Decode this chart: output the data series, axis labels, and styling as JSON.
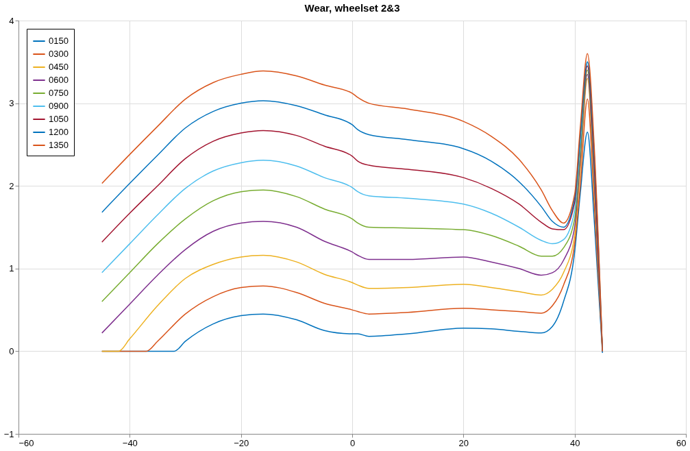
{
  "chart_data": {
    "type": "line",
    "title": "Wear, wheelset 2&3",
    "xlim": [
      -60,
      60
    ],
    "xticks": [
      -60,
      -40,
      -20,
      0,
      20,
      40,
      60
    ],
    "ylim": [
      -1,
      4
    ],
    "yticks": [
      -1,
      0,
      1,
      2,
      3,
      4
    ],
    "grid": true,
    "legend": "top left",
    "line_style": "solid",
    "marker": "none",
    "series": [
      {
        "name": "0150",
        "color": "#0072bd",
        "x": [
          -45,
          -32,
          -30,
          -25,
          -20,
          -16,
          -10,
          -5,
          0,
          1,
          3,
          10,
          20,
          25,
          30,
          34,
          36,
          38,
          40,
          41,
          42.3,
          43.5,
          45
        ],
        "values": [
          0,
          0,
          0.12,
          0.33,
          0.43,
          0.45,
          0.38,
          0.25,
          0.21,
          0.21,
          0.18,
          0.21,
          0.28,
          0.27,
          0.24,
          0.22,
          0.3,
          0.6,
          1.2,
          1.9,
          2.65,
          1.6,
          -0.02
        ]
      },
      {
        "name": "0300",
        "color": "#d95319",
        "x": [
          -45,
          -37,
          -35,
          -30,
          -25,
          -20,
          -16,
          -10,
          -5,
          0,
          1,
          3,
          10,
          20,
          25,
          30,
          34,
          36,
          38,
          40,
          41,
          42.3,
          43.5,
          45
        ],
        "values": [
          0,
          0,
          0.12,
          0.45,
          0.66,
          0.77,
          0.79,
          0.71,
          0.58,
          0.5,
          0.48,
          0.45,
          0.47,
          0.52,
          0.5,
          0.48,
          0.46,
          0.55,
          0.8,
          1.3,
          2.0,
          3.05,
          1.8,
          0
        ]
      },
      {
        "name": "0450",
        "color": "#edb120",
        "x": [
          -45,
          -42,
          -40,
          -35,
          -30,
          -25,
          -20,
          -16,
          -10,
          -5,
          0,
          1,
          3,
          10,
          20,
          25,
          30,
          34,
          36,
          38,
          40,
          41,
          42.3,
          43.5,
          45
        ],
        "values": [
          0,
          0,
          0.15,
          0.55,
          0.88,
          1.05,
          1.14,
          1.16,
          1.08,
          0.93,
          0.83,
          0.8,
          0.76,
          0.77,
          0.81,
          0.77,
          0.72,
          0.68,
          0.75,
          0.95,
          1.4,
          2.2,
          3.3,
          2.0,
          0
        ]
      },
      {
        "name": "0600",
        "color": "#7e2f8e",
        "x": [
          -45,
          -40,
          -35,
          -30,
          -25,
          -20,
          -16,
          -10,
          -5,
          0,
          1,
          3,
          10,
          20,
          25,
          30,
          34,
          36,
          38,
          40,
          41,
          42.3,
          43.5,
          45
        ],
        "values": [
          0.22,
          0.57,
          0.92,
          1.23,
          1.45,
          1.55,
          1.57,
          1.5,
          1.33,
          1.2,
          1.16,
          1.11,
          1.11,
          1.14,
          1.08,
          1.0,
          0.92,
          0.95,
          1.1,
          1.5,
          2.3,
          3.35,
          2.1,
          0
        ]
      },
      {
        "name": "0750",
        "color": "#77ac30",
        "x": [
          -45,
          -40,
          -35,
          -30,
          -25,
          -20,
          -16,
          -10,
          -5,
          0,
          1,
          3,
          10,
          20,
          25,
          30,
          34,
          36,
          38,
          40,
          41,
          42.3,
          43.5,
          45
        ],
        "values": [
          0.6,
          0.95,
          1.3,
          1.6,
          1.82,
          1.93,
          1.95,
          1.87,
          1.72,
          1.6,
          1.55,
          1.5,
          1.49,
          1.47,
          1.4,
          1.27,
          1.15,
          1.15,
          1.25,
          1.6,
          2.4,
          3.4,
          2.2,
          0
        ]
      },
      {
        "name": "0900",
        "color": "#4dbeee",
        "x": [
          -45,
          -40,
          -35,
          -30,
          -25,
          -20,
          -16,
          -10,
          -5,
          0,
          1,
          3,
          10,
          20,
          25,
          30,
          34,
          36,
          38,
          40,
          41,
          42.3,
          43.5,
          45
        ],
        "values": [
          0.95,
          1.3,
          1.65,
          1.97,
          2.18,
          2.28,
          2.31,
          2.24,
          2.1,
          1.98,
          1.93,
          1.88,
          1.85,
          1.78,
          1.67,
          1.5,
          1.34,
          1.3,
          1.35,
          1.7,
          2.5,
          3.5,
          2.3,
          0
        ]
      },
      {
        "name": "1050",
        "color": "#a2142f",
        "x": [
          -45,
          -40,
          -35,
          -30,
          -25,
          -20,
          -16,
          -10,
          -5,
          0,
          1,
          3,
          10,
          20,
          25,
          30,
          34,
          36,
          38,
          40,
          41,
          42.3,
          43.5,
          45
        ],
        "values": [
          1.32,
          1.67,
          2.0,
          2.33,
          2.54,
          2.64,
          2.67,
          2.61,
          2.48,
          2.36,
          2.3,
          2.25,
          2.2,
          2.1,
          1.97,
          1.78,
          1.56,
          1.48,
          1.47,
          1.8,
          2.6,
          3.45,
          2.3,
          0
        ]
      },
      {
        "name": "1200",
        "color": "#0072bd",
        "x": [
          -45,
          -40,
          -35,
          -30,
          -25,
          -20,
          -16,
          -10,
          -5,
          0,
          1,
          3,
          10,
          20,
          25,
          30,
          34,
          36,
          38,
          40,
          41,
          42.3,
          43.5,
          45
        ],
        "values": [
          1.68,
          2.03,
          2.37,
          2.7,
          2.9,
          3.0,
          3.03,
          2.97,
          2.86,
          2.74,
          2.68,
          2.62,
          2.56,
          2.45,
          2.3,
          2.05,
          1.75,
          1.57,
          1.5,
          1.85,
          2.6,
          3.5,
          2.4,
          0
        ]
      },
      {
        "name": "1350",
        "color": "#d95319",
        "x": [
          -45,
          -40,
          -35,
          -30,
          -25,
          -20,
          -16,
          -10,
          -5,
          0,
          1,
          3,
          10,
          20,
          25,
          30,
          34,
          36,
          38,
          40,
          41,
          42.3,
          43.5,
          45
        ],
        "values": [
          2.03,
          2.38,
          2.72,
          3.05,
          3.25,
          3.35,
          3.39,
          3.33,
          3.22,
          3.12,
          3.07,
          3.0,
          2.93,
          2.78,
          2.6,
          2.32,
          1.95,
          1.7,
          1.55,
          1.9,
          2.7,
          3.6,
          2.5,
          0
        ]
      }
    ]
  }
}
